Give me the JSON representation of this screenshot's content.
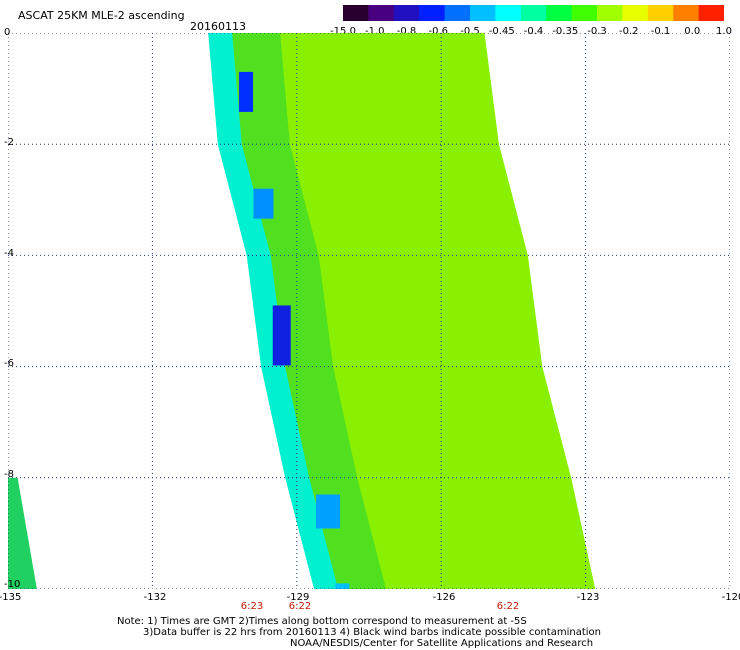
{
  "header": {
    "title": "ASCAT 25KM MLE-2 ascending",
    "date": "20160113"
  },
  "colorbar": {
    "colors": [
      "#280030",
      "#480080",
      "#2010c0",
      "#0020ff",
      "#0070ff",
      "#00c0ff",
      "#00ffff",
      "#00ffa0",
      "#00ff40",
      "#40ff00",
      "#a0ff00",
      "#e8ff00",
      "#ffd000",
      "#ff8000",
      "#ff2000"
    ],
    "labels": [
      "-15.0",
      "-1.0",
      "-0.8",
      "-0.6",
      "-0.5",
      "-0.45",
      "-0.4",
      "-0.35",
      "-0.3",
      "-0.2",
      "-0.1",
      "0.0",
      "1.0"
    ]
  },
  "axes": {
    "y_ticks": [
      "0",
      "-2",
      "-4",
      "-6",
      "-8",
      "-10"
    ],
    "x_ticks": [
      "-135",
      "-132",
      "-129",
      "-126",
      "-123",
      "-120"
    ],
    "time_labels": [
      "6:23",
      "6:22",
      "6:22"
    ]
  },
  "map_data": {
    "lon_range": [
      -135,
      -120
    ],
    "lat_range": [
      -10,
      0
    ],
    "swath": [
      {
        "lat": 0.0,
        "lon_west": -130.8,
        "lon_east": -125.1
      },
      {
        "lat": -2.0,
        "lon_west": -130.6,
        "lon_east": -124.8
      },
      {
        "lat": -4.0,
        "lon_west": -130.0,
        "lon_east": -124.2
      },
      {
        "lat": -6.0,
        "lon_west": -129.7,
        "lon_east": -123.9
      },
      {
        "lat": -8.0,
        "lon_west": -129.2,
        "lon_east": -123.3
      },
      {
        "lat": -10.0,
        "lon_west": -128.6,
        "lon_east": -122.8
      }
    ],
    "western_strip": [
      {
        "lat": -8.0,
        "lon_west": -135,
        "lon_east": -134.8
      },
      {
        "lat": -9.0,
        "lon_west": -135,
        "lon_east": -134.6
      },
      {
        "lat": -10.0,
        "lon_west": -135,
        "lon_east": -134.4
      }
    ]
  },
  "footer": {
    "line1": "Note: 1) Times are GMT 2)Times along bottom correspond to measurement at -5S",
    "line2": "3)Data buffer is 22 hrs from 20160113 4) Black wind barbs indicate possible contamination",
    "line3": "NOAA/NESDIS/Center for Satellite Applications and Research"
  }
}
